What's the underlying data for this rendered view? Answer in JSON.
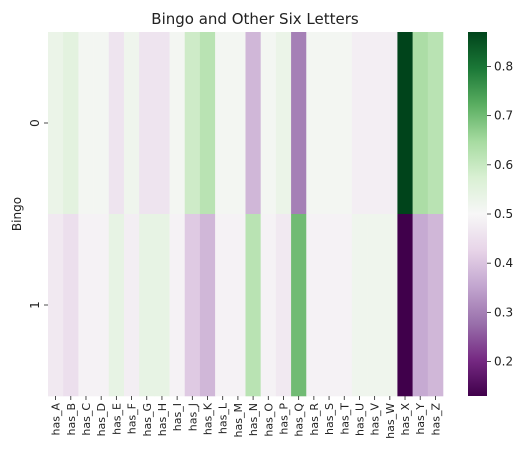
{
  "chart_data": {
    "type": "heatmap",
    "title": "Bingo and Other Six Letters",
    "ylabel": "Bingo",
    "xlabel": "",
    "x_categories": [
      "has_A",
      "has_B",
      "has_C",
      "has_D",
      "has_E",
      "has_F",
      "has_G",
      "has_H",
      "has_I",
      "has_J",
      "has_K",
      "has_L",
      "has_M",
      "has_N",
      "has_O",
      "has_P",
      "has_Q",
      "has_R",
      "has_S",
      "has_T",
      "has_U",
      "has_V",
      "has_W",
      "has_X",
      "has_Y",
      "has_Z"
    ],
    "y_categories": [
      "0",
      "1"
    ],
    "values": [
      [
        0.53,
        0.55,
        0.51,
        0.51,
        0.46,
        0.52,
        0.46,
        0.46,
        0.51,
        0.59,
        0.62,
        0.51,
        0.51,
        0.38,
        0.51,
        0.53,
        0.3,
        0.51,
        0.51,
        0.51,
        0.48,
        0.48,
        0.48,
        0.87,
        0.64,
        0.62
      ],
      [
        0.47,
        0.45,
        0.49,
        0.49,
        0.54,
        0.48,
        0.54,
        0.54,
        0.49,
        0.41,
        0.38,
        0.49,
        0.49,
        0.62,
        0.49,
        0.47,
        0.7,
        0.49,
        0.49,
        0.49,
        0.52,
        0.52,
        0.52,
        0.13,
        0.36,
        0.38
      ]
    ],
    "colorbar": {
      "colormap": "PRGn",
      "range": [
        0.13,
        0.87
      ],
      "ticks": [
        "0.2",
        "0.3",
        "0.4",
        "0.5",
        "0.6",
        "0.7",
        "0.8"
      ]
    },
    "grid": false,
    "legend": "colorbar-right"
  }
}
